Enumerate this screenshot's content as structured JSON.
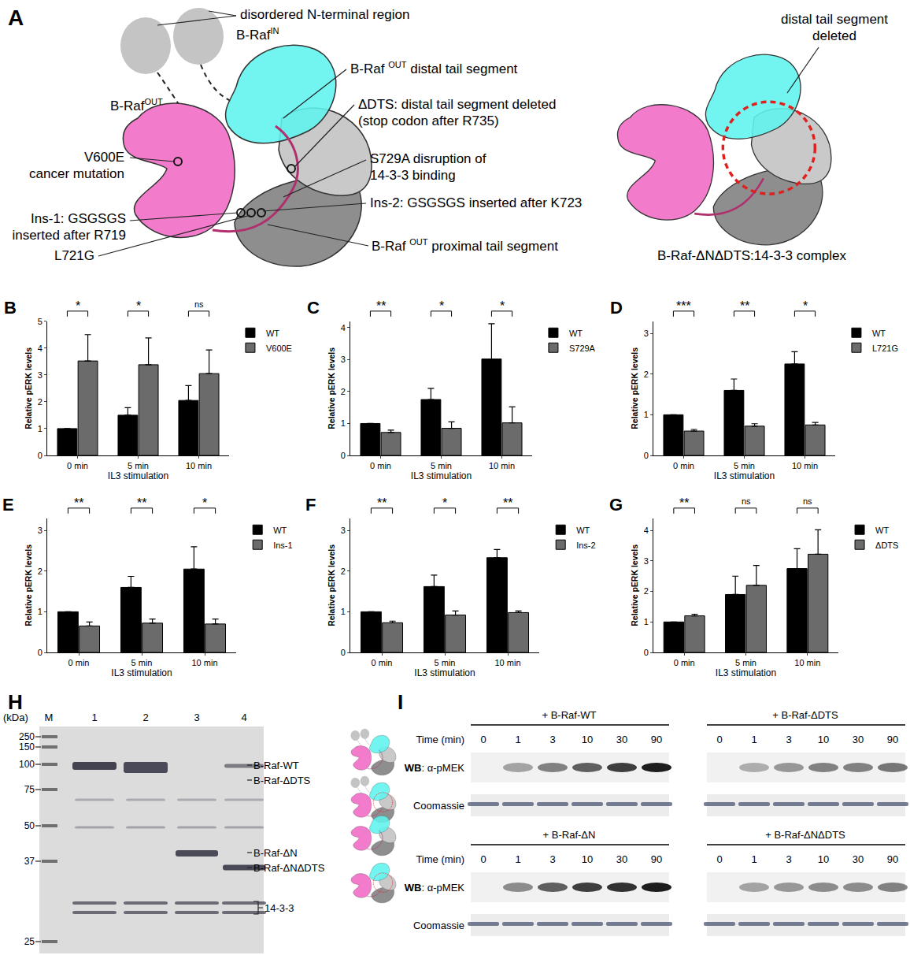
{
  "chart_data": [
    {
      "type": "bar",
      "panel": "B",
      "categories": [
        "0 min",
        "5 min",
        "10 min"
      ],
      "x_label": "IL3 stimulation",
      "y_label": "Relative pERK levels",
      "ylim": [
        0,
        5
      ],
      "yticks": [
        0,
        1,
        2,
        3,
        4,
        5
      ],
      "legend": "right",
      "series": [
        {
          "name": "WT",
          "color": "#000000",
          "values": [
            1,
            1.5,
            2.05
          ],
          "errors": [
            0,
            0.28,
            0.55
          ]
        },
        {
          "name": "V600E",
          "color": "#6b6b6b",
          "values": [
            3.52,
            3.38,
            3.05
          ],
          "errors": [
            0.98,
            1.0,
            0.88
          ]
        }
      ],
      "significance": [
        "*",
        "*",
        "ns"
      ]
    },
    {
      "type": "bar",
      "panel": "C",
      "categories": [
        "0 min",
        "5 min",
        "10 min"
      ],
      "x_label": "IL3 stimulation",
      "y_label": "Relative pERK levels",
      "ylim": [
        0,
        4.2
      ],
      "yticks": [
        0,
        1,
        2,
        3,
        4
      ],
      "legend": "right",
      "series": [
        {
          "name": "WT",
          "color": "#000000",
          "values": [
            1,
            1.75,
            3.02
          ],
          "errors": [
            0,
            0.35,
            1.1
          ]
        },
        {
          "name": "S729A",
          "color": "#6b6b6b",
          "values": [
            0.72,
            0.85,
            1.02
          ],
          "errors": [
            0.07,
            0.2,
            0.5
          ]
        }
      ],
      "significance": [
        "**",
        "*",
        "*"
      ]
    },
    {
      "type": "bar",
      "panel": "D",
      "categories": [
        "0 min",
        "5 min",
        "10 min"
      ],
      "x_label": "IL3 stimulation",
      "y_label": "Relative pERK levels",
      "ylim": [
        0,
        3.3
      ],
      "yticks": [
        0,
        1,
        2,
        3
      ],
      "legend": "right",
      "series": [
        {
          "name": "WT",
          "color": "#000000",
          "values": [
            1,
            1.6,
            2.25
          ],
          "errors": [
            0,
            0.28,
            0.3
          ]
        },
        {
          "name": "L721G",
          "color": "#6b6b6b",
          "values": [
            0.6,
            0.72,
            0.75
          ],
          "errors": [
            0.04,
            0.06,
            0.06
          ]
        }
      ],
      "significance": [
        "***",
        "**",
        "*"
      ]
    },
    {
      "type": "bar",
      "panel": "E",
      "categories": [
        "0 min",
        "5 min",
        "10 min"
      ],
      "x_label": "IL3 stimulation",
      "y_label": "Relative pERK levels",
      "ylim": [
        0,
        3.3
      ],
      "yticks": [
        0,
        1,
        2,
        3
      ],
      "legend": "right",
      "series": [
        {
          "name": "WT",
          "color": "#000000",
          "values": [
            1,
            1.6,
            2.05
          ],
          "errors": [
            0,
            0.27,
            0.55
          ]
        },
        {
          "name": "Ins-1",
          "color": "#6b6b6b",
          "values": [
            0.65,
            0.72,
            0.7
          ],
          "errors": [
            0.1,
            0.1,
            0.12
          ]
        }
      ],
      "significance": [
        "**",
        "**",
        "*"
      ]
    },
    {
      "type": "bar",
      "panel": "F",
      "categories": [
        "0 min",
        "5 min",
        "10 min"
      ],
      "x_label": "IL3 stimulation",
      "y_label": "Relative pERK levels",
      "ylim": [
        0,
        3.3
      ],
      "yticks": [
        0,
        1,
        2,
        3
      ],
      "legend": "right",
      "series": [
        {
          "name": "WT",
          "color": "#000000",
          "values": [
            1,
            1.62,
            2.33
          ],
          "errors": [
            0,
            0.28,
            0.2
          ]
        },
        {
          "name": "Ins-2",
          "color": "#6b6b6b",
          "values": [
            0.73,
            0.92,
            0.98
          ],
          "errors": [
            0.04,
            0.1,
            0.04
          ]
        }
      ],
      "significance": [
        "**",
        "*",
        "**"
      ]
    },
    {
      "type": "bar",
      "panel": "G",
      "categories": [
        "0 min",
        "5 min",
        "10 min"
      ],
      "x_label": "IL3 stimulation",
      "y_label": "Relative pERK levels",
      "ylim": [
        0,
        4.4
      ],
      "yticks": [
        0,
        1,
        2,
        3,
        4
      ],
      "legend": "right",
      "series": [
        {
          "name": "WT",
          "color": "#000000",
          "values": [
            1,
            1.9,
            2.75
          ],
          "errors": [
            0,
            0.6,
            0.65
          ]
        },
        {
          "name": "ΔDTS",
          "color": "#6b6b6b",
          "values": [
            1.2,
            2.2,
            3.22
          ],
          "errors": [
            0.05,
            0.65,
            0.8
          ]
        }
      ],
      "significance": [
        "**",
        "ns",
        "ns"
      ]
    }
  ],
  "diagram": {
    "panel": "A",
    "labels": {
      "nterm": [
        [
          "disordered N-terminal region"
        ]
      ],
      "braf_in": [
        [
          "B-Raf",
          {
            "sup": "IN"
          }
        ]
      ],
      "braf_out": [
        [
          "B-Raf",
          {
            "sup": "OUT"
          }
        ]
      ],
      "distal": [
        [
          "B-Raf ",
          {
            "sup": "OUT"
          },
          " distal tail segment"
        ]
      ],
      "ddts": [
        [
          "ΔDTS: distal tail segment deleted"
        ],
        [
          "(stop codon after R735)"
        ]
      ],
      "s729a": [
        [
          "S729A disruption of"
        ],
        [
          "14-3-3 binding"
        ]
      ],
      "ins2": [
        [
          "Ins-2: GSGSGS inserted after K723"
        ]
      ],
      "proximal": [
        [
          "B-Raf ",
          {
            "sup": "OUT"
          },
          " proximal tail segment"
        ]
      ],
      "v600e": [
        [
          "V600E"
        ],
        [
          "cancer mutation"
        ]
      ],
      "ins1": [
        [
          "Ins-1: GSGSGS"
        ],
        [
          "inserted after R719"
        ]
      ],
      "l721g": [
        [
          "L721G"
        ]
      ],
      "deleted": [
        [
          "distal tail segment"
        ],
        [
          "deleted"
        ]
      ],
      "complex": [
        [
          "B-Raf-ΔNΔDTS:14-3-3 complex"
        ]
      ]
    }
  },
  "gel": {
    "panel": "H",
    "unit_label": "(kDa)",
    "marker_lane": "M",
    "lanes": [
      "1",
      "2",
      "3",
      "4"
    ],
    "ladder": [
      250,
      150,
      100,
      75,
      50,
      37,
      25
    ],
    "band_labels": [
      "B-Raf-WT",
      "B-Raf-ΔDTS",
      "B-Raf-ΔN",
      "B-Raf-ΔNΔDTS",
      "14-3-3"
    ]
  },
  "blot": {
    "panel": "I",
    "time_label": "Time (min)",
    "times": [
      0,
      1,
      3,
      10,
      30,
      90
    ],
    "row_labels": {
      "blot": [
        "WB",
        ": α-pMEK"
      ],
      "stain": "Coomassie"
    },
    "groups": [
      {
        "label": "+ B-Raf-WT",
        "pmek": [
          0,
          0.35,
          0.5,
          0.65,
          0.8,
          0.95
        ]
      },
      {
        "label": "+ B-Raf-ΔDTS",
        "pmek": [
          0,
          0.3,
          0.4,
          0.5,
          0.5,
          0.55
        ]
      },
      {
        "label": "+ B-Raf-ΔN",
        "pmek": [
          0,
          0.45,
          0.65,
          0.8,
          0.85,
          0.95
        ]
      },
      {
        "label": "+ B-Raf-ΔNΔDTS",
        "pmek": [
          0,
          0.35,
          0.4,
          0.45,
          0.45,
          0.5
        ]
      }
    ]
  }
}
